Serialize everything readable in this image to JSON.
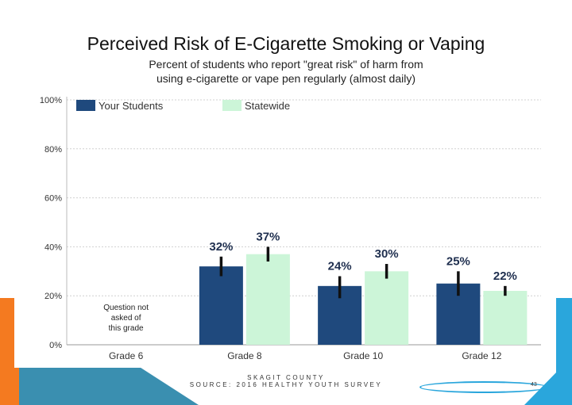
{
  "slide": {
    "title": "Perceived Risk of E-Cigarette Smoking or Vaping",
    "subtitle_line1": "Percent of students who report \"great risk\" of harm from",
    "subtitle_line2": "using e-cigarette or vape pen regularly (almost daily)",
    "footer_line1": "SKAGIT COUNTY",
    "footer_line2": "SOURCE: 2016 HEALTHY YOUTH SURVEY",
    "page_number": "43"
  },
  "colors": {
    "your_students": "#1f497d",
    "statewide": "#ccf5d8",
    "error_bar": "#111111",
    "accent_orange": "#f47a20",
    "accent_blue": "#2aa6dc",
    "accent_teal": "#3a8fb0"
  },
  "chart_data": {
    "type": "bar",
    "categories": [
      "Grade 6",
      "Grade 8",
      "Grade 10",
      "Grade 12"
    ],
    "series": [
      {
        "name": "Your Students",
        "values": [
          null,
          32,
          24,
          25
        ],
        "labels": [
          "",
          "32%",
          "24%",
          "25%"
        ],
        "error_low": [
          null,
          28,
          19,
          20
        ],
        "error_high": [
          null,
          36,
          28,
          30
        ]
      },
      {
        "name": "Statewide",
        "values": [
          null,
          37,
          30,
          22
        ],
        "labels": [
          "",
          "37%",
          "30%",
          "22%"
        ],
        "error_low": [
          null,
          34,
          27,
          20
        ],
        "error_high": [
          null,
          40,
          33,
          24
        ]
      }
    ],
    "y_ticks": [
      "0%",
      "20%",
      "40%",
      "60%",
      "80%",
      "100%"
    ],
    "ylim": [
      0,
      100
    ],
    "grid": true,
    "legend": "top-left",
    "annotation_grade6": [
      "Question not",
      "asked of",
      "this grade"
    ],
    "title": "",
    "xlabel": "",
    "ylabel": ""
  }
}
